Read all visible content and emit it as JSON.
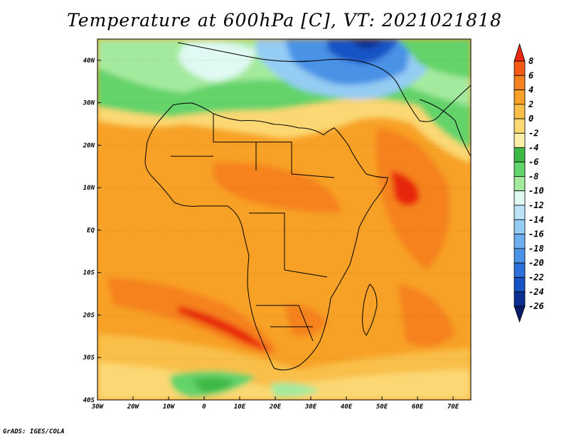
{
  "title": "Temperature at 600hPa [C], VT: 2021021818",
  "credit": "GrADS: IGES/COLA",
  "map": {
    "lon_labels": [
      "30W",
      "20W",
      "10W",
      "0",
      "10E",
      "20E",
      "30E",
      "40E",
      "50E",
      "60E",
      "70E"
    ],
    "lat_labels": [
      "40N",
      "30N",
      "20N",
      "10N",
      "EQ",
      "10S",
      "20S",
      "30S",
      "40S"
    ],
    "extent": {
      "lon": [
        -30,
        75
      ],
      "lat": [
        -40,
        45
      ]
    }
  },
  "colorbar": {
    "labels": [
      "8",
      "6",
      "4",
      "2",
      "0",
      "-2",
      "-4",
      "-6",
      "-8",
      "-10",
      "-12",
      "-14",
      "-16",
      "-18",
      "-20",
      "-22",
      "-24",
      "-26"
    ],
    "colors": [
      "#e8280f",
      "#f55a14",
      "#f5821e",
      "#f7a126",
      "#f9bf4a",
      "#fbd873",
      "#fbeea6",
      "#3cb844",
      "#63d36b",
      "#a4ea9e",
      "#e0f9f2",
      "#bde3f8",
      "#94ccf3",
      "#6caeee",
      "#4a92e6",
      "#2d70d9",
      "#1752c4",
      "#0a2f90",
      "#0c1a6a"
    ]
  },
  "colors": {
    "land_outline": "#000000",
    "field_base": "#f6ad35"
  }
}
